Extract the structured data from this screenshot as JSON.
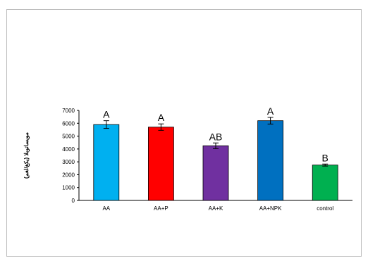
{
  "chart_data": {
    "type": "bar",
    "title": "",
    "xlabel": "",
    "ylabel": "(يكغ/لغم) مويساتوبلا",
    "ylim": [
      0,
      7000
    ],
    "yticks": [
      0,
      1000,
      2000,
      3000,
      4000,
      5000,
      6000,
      7000
    ],
    "categories": [
      "AA",
      "AA+P",
      "AA+K",
      "AA+NPK",
      "control"
    ],
    "values": [
      5900,
      5700,
      4250,
      6200,
      2750
    ],
    "errors": [
      300,
      250,
      220,
      260,
      80
    ],
    "significance_letters": [
      "A",
      "A",
      "AB",
      "A",
      "B"
    ],
    "colors": [
      "#00b0f0",
      "#ff0000",
      "#7030a0",
      "#0070c0",
      "#00b050"
    ],
    "grid": false,
    "legend": "none"
  }
}
